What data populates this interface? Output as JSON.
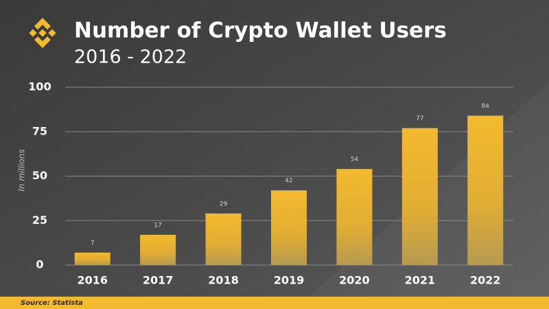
{
  "chart_data": {
    "type": "bar",
    "title": "Number of Crypto Wallet Users",
    "subtitle": "2016 - 2022",
    "y_label": "In millions",
    "source": "Source: Statista",
    "categories": [
      "2016",
      "2017",
      "2018",
      "2019",
      "2020",
      "2021",
      "2022"
    ],
    "values": [
      7,
      17,
      29,
      42,
      54,
      77,
      84
    ],
    "color": "#f3ba2f",
    "ylim": [
      0,
      100
    ],
    "yticks": [
      0,
      25,
      50,
      75,
      100
    ],
    "grid": true
  }
}
